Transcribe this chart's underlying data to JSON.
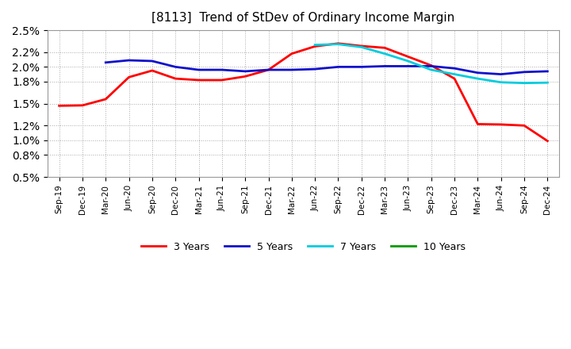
{
  "title": "[8113]  Trend of StDev of Ordinary Income Margin",
  "x_labels": [
    "Sep-19",
    "Dec-19",
    "Mar-20",
    "Jun-20",
    "Sep-20",
    "Dec-20",
    "Mar-21",
    "Jun-21",
    "Sep-21",
    "Dec-21",
    "Mar-22",
    "Jun-22",
    "Sep-22",
    "Dec-22",
    "Mar-23",
    "Jun-23",
    "Sep-23",
    "Dec-23",
    "Mar-24",
    "Jun-24",
    "Sep-24",
    "Dec-24"
  ],
  "y_min": 0.005,
  "y_max": 0.025,
  "y_ticks": [
    0.005,
    0.008,
    0.01,
    0.012,
    0.015,
    0.018,
    0.02,
    0.022,
    0.025
  ],
  "series": {
    "3 Years": {
      "color": "#FF0000",
      "linewidth": 2.0,
      "values": [
        0.0147,
        0.01475,
        0.0156,
        0.0186,
        0.0195,
        0.0184,
        0.0182,
        0.0182,
        0.0187,
        0.0196,
        0.0218,
        0.0228,
        0.0232,
        0.02285,
        0.0226,
        0.0214,
        0.0202,
        0.0184,
        0.0122,
        0.01215,
        0.012,
        0.0099
      ]
    },
    "5 Years": {
      "color": "#1010CC",
      "linewidth": 2.0,
      "values": [
        null,
        null,
        0.0206,
        0.0209,
        0.0208,
        0.02,
        0.0196,
        0.0196,
        0.0194,
        0.0196,
        0.0196,
        0.0197,
        0.02,
        0.02,
        0.0201,
        0.0201,
        0.0201,
        0.0198,
        0.0192,
        0.019,
        0.0193,
        0.0194
      ]
    },
    "7 Years": {
      "color": "#00CCDD",
      "linewidth": 2.0,
      "values": [
        null,
        null,
        null,
        null,
        null,
        null,
        null,
        null,
        null,
        null,
        null,
        0.023,
        0.0231,
        0.0227,
        0.0218,
        0.0208,
        0.0196,
        0.019,
        0.0184,
        0.0179,
        0.0178,
        0.01785
      ]
    },
    "10 Years": {
      "color": "#009900",
      "linewidth": 2.0,
      "values": [
        null,
        null,
        null,
        null,
        null,
        null,
        null,
        null,
        null,
        null,
        null,
        null,
        null,
        null,
        null,
        null,
        null,
        null,
        null,
        null,
        null,
        null
      ]
    }
  },
  "background_color": "#FFFFFF",
  "plot_bg_color": "#FFFFFF",
  "grid_color": "#AAAAAA",
  "title_fontsize": 11,
  "legend_fontsize": 9
}
